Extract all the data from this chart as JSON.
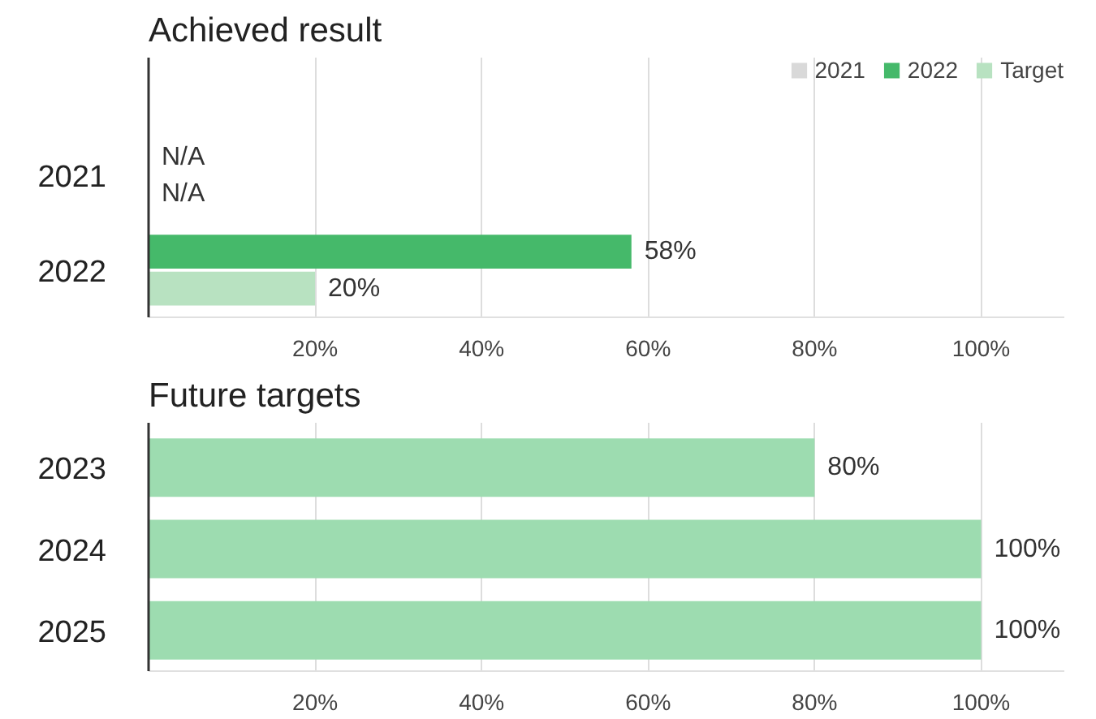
{
  "chart_data": [
    {
      "type": "bar",
      "orientation": "horizontal",
      "title": "Achieved result",
      "categories": [
        "2021",
        "2022"
      ],
      "series": [
        {
          "name": "2021",
          "color": "#d9d9d9",
          "values": [
            0,
            null
          ],
          "value_labels": [
            "N/A",
            null
          ]
        },
        {
          "name": "2022",
          "color": "#45b96a",
          "values": [
            null,
            58
          ],
          "value_labels": [
            null,
            "58%"
          ]
        },
        {
          "name": "Target",
          "color": "#b8e2c1",
          "values": [
            0,
            20
          ],
          "value_labels": [
            "N/A",
            "20%"
          ]
        }
      ],
      "xlim": [
        0,
        110
      ],
      "xticks": [
        {
          "value": 20,
          "label": "20%"
        },
        {
          "value": 40,
          "label": "40%"
        },
        {
          "value": 60,
          "label": "60%"
        },
        {
          "value": 80,
          "label": "80%"
        },
        {
          "value": 100,
          "label": "100%"
        }
      ],
      "grid": "x",
      "legend": "top right"
    },
    {
      "type": "bar",
      "orientation": "horizontal",
      "title": "Future targets",
      "categories": [
        "2023",
        "2024",
        "2025"
      ],
      "series": [
        {
          "color": "#9ddcb0",
          "values": [
            80,
            100,
            100
          ],
          "value_labels": [
            "80%",
            "100%",
            "100%"
          ]
        }
      ],
      "xlim": [
        0,
        110
      ],
      "xticks": [
        {
          "value": 20,
          "label": "20%"
        },
        {
          "value": 40,
          "label": "40%"
        },
        {
          "value": 60,
          "label": "60%"
        },
        {
          "value": 80,
          "label": "80%"
        },
        {
          "value": 100,
          "label": "100%"
        }
      ],
      "grid": "x"
    }
  ]
}
